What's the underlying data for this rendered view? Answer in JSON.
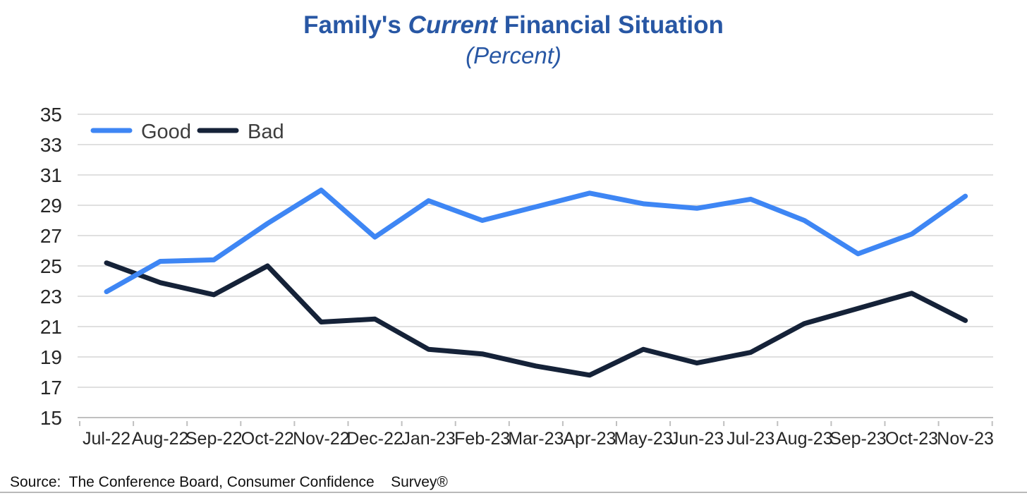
{
  "header": {
    "title_prefix": "Family's ",
    "title_emph": "Current",
    "title_suffix": " Financial Situation",
    "subtitle": "(Percent)",
    "title_color": "#2857A4"
  },
  "footer": {
    "source": "Source:  The Conference Board, Consumer Confidence    Survey®"
  },
  "chart_data": {
    "type": "line",
    "title": "Family's Current Financial Situation",
    "subtitle": "(Percent)",
    "xlabel": "",
    "ylabel": "",
    "categories": [
      "Jul-22",
      "Aug-22",
      "Sep-22",
      "Oct-22",
      "Nov-22",
      "Dec-22",
      "Jan-23",
      "Feb-23",
      "Mar-23",
      "Apr-23",
      "May-23",
      "Jun-23",
      "Jul-23",
      "Aug-23",
      "Sep-23",
      "Oct-23",
      "Nov-23"
    ],
    "series": [
      {
        "name": "Good",
        "color": "#3E86F4",
        "values": [
          23.3,
          25.3,
          25.4,
          27.8,
          30.0,
          26.9,
          29.3,
          28.0,
          28.9,
          29.8,
          29.1,
          28.8,
          29.4,
          28.0,
          25.8,
          27.1,
          29.6
        ]
      },
      {
        "name": "Bad",
        "color": "#152238",
        "values": [
          25.2,
          23.9,
          23.1,
          25.0,
          21.3,
          21.5,
          19.5,
          19.2,
          18.4,
          17.8,
          19.5,
          18.6,
          19.3,
          21.2,
          22.2,
          23.2,
          21.4
        ]
      }
    ],
    "ylim": [
      15,
      35
    ],
    "yticks": [
      35,
      33,
      31,
      29,
      27,
      25,
      23,
      21,
      19,
      17,
      15
    ],
    "grid": true,
    "legend_position": "top-left-inside"
  },
  "style": {
    "grid_color": "#e0e0e0",
    "axis_color": "#c0c0c0",
    "tick_label_color": "#262626",
    "legend_text_color": "#3d3d3d"
  }
}
